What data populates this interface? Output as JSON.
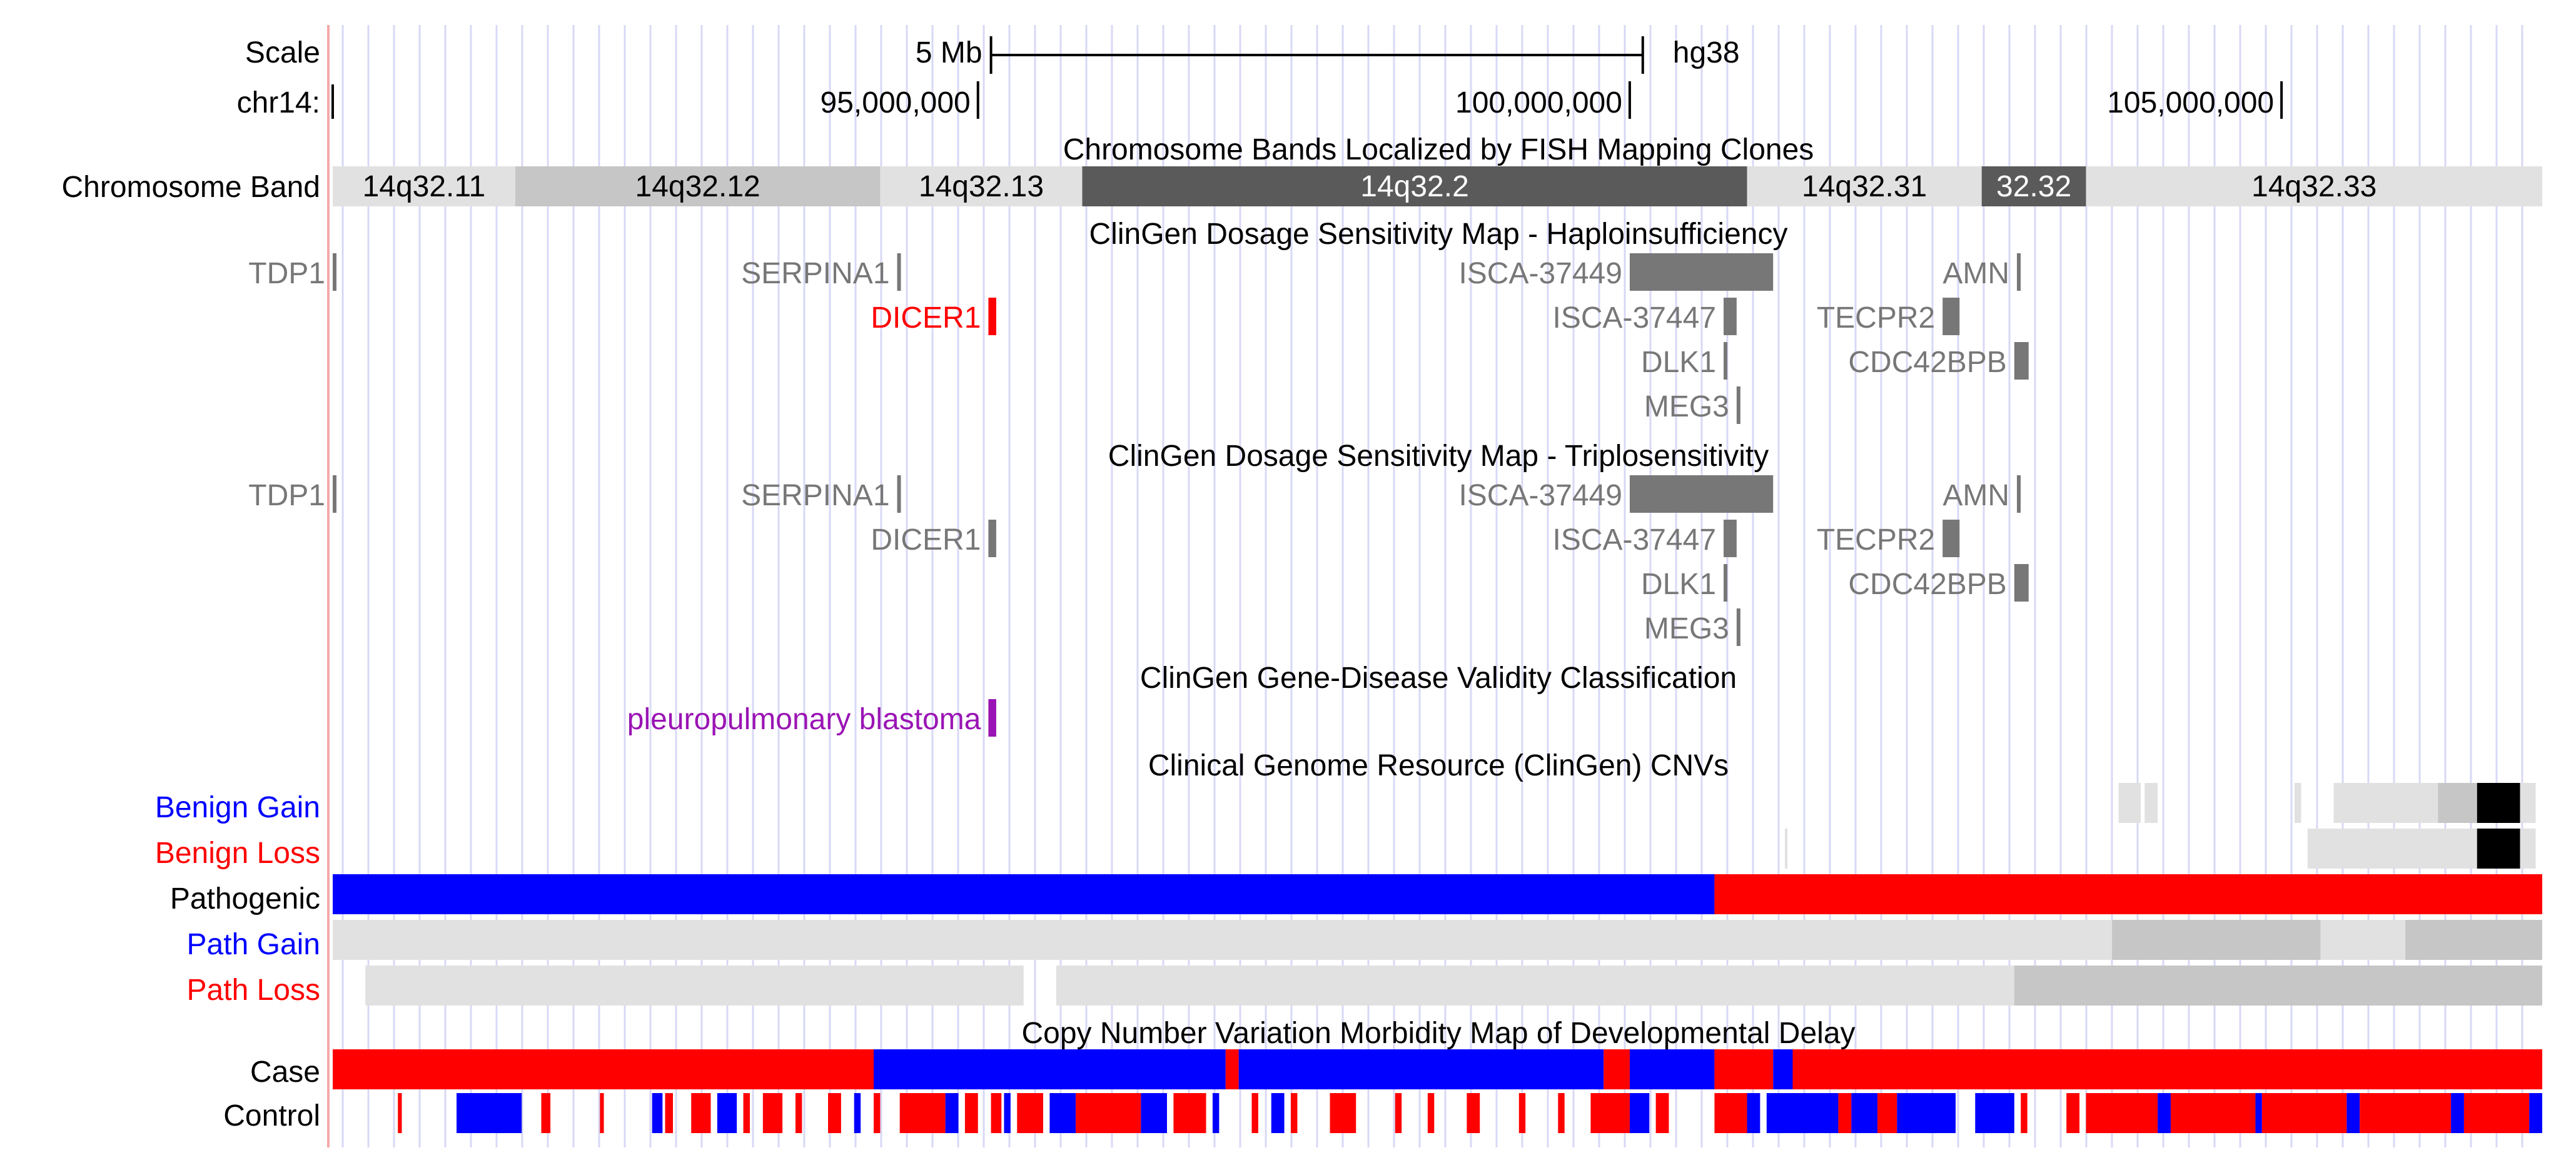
{
  "colors": {
    "grid": "#d8d8f6",
    "redline": "#f4a8a8",
    "gene_gray": "#777777",
    "red": "#ff0000",
    "blue": "#0000ff",
    "purple": "#9a14b4",
    "light": "#e1e1e1",
    "mid": "#c6c6c6",
    "dark": "#5a5a5a",
    "black": "#000000"
  },
  "browser": {
    "assembly": "hg38",
    "chrom_label": "chr14:",
    "scale_label": "Scale",
    "scale_bar_label": "5 Mb",
    "view_start_mb": 90.05,
    "view_end_mb": 107.0,
    "scale_bar_start_mb": 95.1,
    "scale_bar_end_mb": 100.1,
    "ruler_ticks": [
      {
        "label": "95,000,000",
        "pos_mb": 95.0
      },
      {
        "label": "100,000,000",
        "pos_mb": 100.0
      },
      {
        "label": "105,000,000",
        "pos_mb": 105.0
      }
    ]
  },
  "bands": {
    "title": "Chromosome Bands Localized by FISH Mapping Clones",
    "label": "Chromosome Band",
    "items": [
      {
        "name": "14q32.11",
        "start_mb": 90.05,
        "end_mb": 91.45,
        "shade": "light"
      },
      {
        "name": "14q32.12",
        "start_mb": 91.45,
        "end_mb": 94.25,
        "shade": "mid"
      },
      {
        "name": "14q32.13",
        "start_mb": 94.25,
        "end_mb": 95.8,
        "shade": "light"
      },
      {
        "name": "14q32.2",
        "start_mb": 95.8,
        "end_mb": 100.9,
        "shade": "dark"
      },
      {
        "name": "14q32.31",
        "start_mb": 100.9,
        "end_mb": 102.7,
        "shade": "light"
      },
      {
        "name": "32.32",
        "start_mb": 102.7,
        "end_mb": 103.5,
        "shade": "dark"
      },
      {
        "name": "14q32.33",
        "start_mb": 103.5,
        "end_mb": 107.0,
        "shade": "light"
      }
    ]
  },
  "haplo": {
    "title": "ClinGen Dosage Sensitivity Map - Haploinsufficiency",
    "features": [
      {
        "name": "TDP1",
        "start_mb": 90.05,
        "end_mb": 90.07,
        "row": 0,
        "color": "gray"
      },
      {
        "name": "SERPINA1",
        "start_mb": 94.38,
        "end_mb": 94.4,
        "row": 0,
        "color": "gray"
      },
      {
        "name": "ISCA-37449",
        "start_mb": 100.0,
        "end_mb": 101.1,
        "row": 0,
        "color": "gray"
      },
      {
        "name": "AMN",
        "start_mb": 102.97,
        "end_mb": 102.99,
        "row": 0,
        "color": "gray"
      },
      {
        "name": "DICER1",
        "start_mb": 95.08,
        "end_mb": 95.14,
        "row": 1,
        "color": "red"
      },
      {
        "name": "ISCA-37447",
        "start_mb": 100.72,
        "end_mb": 100.82,
        "row": 1,
        "color": "gray"
      },
      {
        "name": "TECPR2",
        "start_mb": 102.4,
        "end_mb": 102.53,
        "row": 1,
        "color": "gray"
      },
      {
        "name": "DLK1",
        "start_mb": 100.72,
        "end_mb": 100.74,
        "row": 2,
        "color": "gray"
      },
      {
        "name": "CDC42BPB",
        "start_mb": 102.95,
        "end_mb": 103.06,
        "row": 2,
        "color": "gray"
      },
      {
        "name": "MEG3",
        "start_mb": 100.82,
        "end_mb": 100.84,
        "row": 3,
        "color": "gray"
      }
    ]
  },
  "triplo": {
    "title": "ClinGen Dosage Sensitivity Map - Triplosensitivity",
    "features": [
      {
        "name": "TDP1",
        "start_mb": 90.05,
        "end_mb": 90.07,
        "row": 0,
        "color": "gray"
      },
      {
        "name": "SERPINA1",
        "start_mb": 94.38,
        "end_mb": 94.4,
        "row": 0,
        "color": "gray"
      },
      {
        "name": "ISCA-37449",
        "start_mb": 100.0,
        "end_mb": 101.1,
        "row": 0,
        "color": "gray"
      },
      {
        "name": "AMN",
        "start_mb": 102.97,
        "end_mb": 102.99,
        "row": 0,
        "color": "gray"
      },
      {
        "name": "DICER1",
        "start_mb": 95.08,
        "end_mb": 95.14,
        "row": 1,
        "color": "gray"
      },
      {
        "name": "ISCA-37447",
        "start_mb": 100.72,
        "end_mb": 100.82,
        "row": 1,
        "color": "gray"
      },
      {
        "name": "TECPR2",
        "start_mb": 102.4,
        "end_mb": 102.53,
        "row": 1,
        "color": "gray"
      },
      {
        "name": "DLK1",
        "start_mb": 100.72,
        "end_mb": 100.74,
        "row": 2,
        "color": "gray"
      },
      {
        "name": "CDC42BPB",
        "start_mb": 102.95,
        "end_mb": 103.06,
        "row": 2,
        "color": "gray"
      },
      {
        "name": "MEG3",
        "start_mb": 100.82,
        "end_mb": 100.84,
        "row": 3,
        "color": "gray"
      }
    ]
  },
  "validity": {
    "title": "ClinGen Gene-Disease Validity Classification",
    "features": [
      {
        "name": "pleuropulmonary blastoma",
        "start_mb": 95.08,
        "end_mb": 95.14,
        "color": "purple"
      }
    ]
  },
  "cnvs": {
    "title": "Clinical Genome Resource (ClinGen) CNVs",
    "tracks": [
      {
        "label": "Benign Gain",
        "label_color": "blue",
        "segments": [
          {
            "start_mb": 103.75,
            "end_mb": 103.92,
            "shade": "light"
          },
          {
            "start_mb": 103.95,
            "end_mb": 104.05,
            "shade": "light"
          },
          {
            "start_mb": 105.1,
            "end_mb": 105.15,
            "shade": "light"
          },
          {
            "start_mb": 105.4,
            "end_mb": 106.2,
            "shade": "light"
          },
          {
            "start_mb": 106.2,
            "end_mb": 106.5,
            "shade": "mid"
          },
          {
            "start_mb": 106.5,
            "end_mb": 106.83,
            "shade": "black"
          },
          {
            "start_mb": 106.83,
            "end_mb": 106.95,
            "shade": "light"
          }
        ]
      },
      {
        "label": "Benign Loss",
        "label_color": "red",
        "segments": [
          {
            "start_mb": 101.19,
            "end_mb": 101.21,
            "shade": "light"
          },
          {
            "start_mb": 105.2,
            "end_mb": 105.35,
            "shade": "light"
          },
          {
            "start_mb": 105.35,
            "end_mb": 106.5,
            "shade": "light"
          },
          {
            "start_mb": 106.5,
            "end_mb": 106.83,
            "shade": "black"
          },
          {
            "start_mb": 106.83,
            "end_mb": 106.95,
            "shade": "light"
          }
        ]
      },
      {
        "label": "Pathogenic",
        "label_color": "black",
        "segments": [
          {
            "start_mb": 90.05,
            "end_mb": 100.65,
            "shade": "blue"
          },
          {
            "start_mb": 100.65,
            "end_mb": 107.0,
            "shade": "red"
          }
        ]
      },
      {
        "label": "Path Gain",
        "label_color": "blue",
        "segments": [
          {
            "start_mb": 90.05,
            "end_mb": 103.7,
            "shade": "light"
          },
          {
            "start_mb": 103.7,
            "end_mb": 105.3,
            "shade": "mid"
          },
          {
            "start_mb": 105.3,
            "end_mb": 105.95,
            "shade": "light"
          },
          {
            "start_mb": 105.95,
            "end_mb": 107.0,
            "shade": "mid"
          }
        ]
      },
      {
        "label": "Path Loss",
        "label_color": "red",
        "segments": [
          {
            "start_mb": 90.3,
            "end_mb": 95.35,
            "shade": "light"
          },
          {
            "start_mb": 95.6,
            "end_mb": 102.95,
            "shade": "light"
          },
          {
            "start_mb": 102.95,
            "end_mb": 107.0,
            "shade": "mid"
          }
        ]
      }
    ]
  },
  "morbidity": {
    "title": "Copy Number Variation Morbidity Map of Developmental Delay",
    "case": {
      "label": "Case",
      "segments": [
        {
          "start_mb": 90.05,
          "end_mb": 94.2,
          "color": "red"
        },
        {
          "start_mb": 94.2,
          "end_mb": 96.9,
          "color": "blue"
        },
        {
          "start_mb": 96.9,
          "end_mb": 97.0,
          "color": "red"
        },
        {
          "start_mb": 97.0,
          "end_mb": 99.8,
          "color": "blue"
        },
        {
          "start_mb": 99.8,
          "end_mb": 100.0,
          "color": "red"
        },
        {
          "start_mb": 100.0,
          "end_mb": 100.65,
          "color": "blue"
        },
        {
          "start_mb": 100.65,
          "end_mb": 101.1,
          "color": "red"
        },
        {
          "start_mb": 101.1,
          "end_mb": 101.25,
          "color": "blue"
        },
        {
          "start_mb": 101.25,
          "end_mb": 107.0,
          "color": "red"
        }
      ]
    },
    "control": {
      "label": "Control",
      "segments": [
        {
          "start_mb": 90.55,
          "end_mb": 90.58,
          "color": "red"
        },
        {
          "start_mb": 91.0,
          "end_mb": 91.5,
          "color": "blue"
        },
        {
          "start_mb": 91.65,
          "end_mb": 91.72,
          "color": "red"
        },
        {
          "start_mb": 92.1,
          "end_mb": 92.13,
          "color": "red"
        },
        {
          "start_mb": 92.5,
          "end_mb": 92.58,
          "color": "blue"
        },
        {
          "start_mb": 92.6,
          "end_mb": 92.66,
          "color": "red"
        },
        {
          "start_mb": 92.8,
          "end_mb": 92.95,
          "color": "red"
        },
        {
          "start_mb": 93.0,
          "end_mb": 93.15,
          "color": "blue"
        },
        {
          "start_mb": 93.2,
          "end_mb": 93.25,
          "color": "red"
        },
        {
          "start_mb": 93.35,
          "end_mb": 93.5,
          "color": "red"
        },
        {
          "start_mb": 93.6,
          "end_mb": 93.65,
          "color": "red"
        },
        {
          "start_mb": 93.85,
          "end_mb": 93.95,
          "color": "red"
        },
        {
          "start_mb": 94.05,
          "end_mb": 94.1,
          "color": "blue"
        },
        {
          "start_mb": 94.2,
          "end_mb": 94.25,
          "color": "red"
        },
        {
          "start_mb": 94.4,
          "end_mb": 94.75,
          "color": "red"
        },
        {
          "start_mb": 94.75,
          "end_mb": 94.85,
          "color": "blue"
        },
        {
          "start_mb": 94.9,
          "end_mb": 95.0,
          "color": "red"
        },
        {
          "start_mb": 95.1,
          "end_mb": 95.18,
          "color": "red"
        },
        {
          "start_mb": 95.2,
          "end_mb": 95.25,
          "color": "blue"
        },
        {
          "start_mb": 95.3,
          "end_mb": 95.5,
          "color": "red"
        },
        {
          "start_mb": 95.55,
          "end_mb": 95.75,
          "color": "blue"
        },
        {
          "start_mb": 95.75,
          "end_mb": 96.25,
          "color": "red"
        },
        {
          "start_mb": 96.25,
          "end_mb": 96.45,
          "color": "blue"
        },
        {
          "start_mb": 96.5,
          "end_mb": 96.75,
          "color": "red"
        },
        {
          "start_mb": 96.8,
          "end_mb": 96.85,
          "color": "blue"
        },
        {
          "start_mb": 97.1,
          "end_mb": 97.15,
          "color": "red"
        },
        {
          "start_mb": 97.25,
          "end_mb": 97.35,
          "color": "blue"
        },
        {
          "start_mb": 97.4,
          "end_mb": 97.45,
          "color": "red"
        },
        {
          "start_mb": 97.7,
          "end_mb": 97.9,
          "color": "red"
        },
        {
          "start_mb": 98.2,
          "end_mb": 98.25,
          "color": "red"
        },
        {
          "start_mb": 98.45,
          "end_mb": 98.5,
          "color": "red"
        },
        {
          "start_mb": 98.75,
          "end_mb": 98.85,
          "color": "red"
        },
        {
          "start_mb": 99.15,
          "end_mb": 99.2,
          "color": "red"
        },
        {
          "start_mb": 99.45,
          "end_mb": 99.5,
          "color": "red"
        },
        {
          "start_mb": 99.7,
          "end_mb": 100.0,
          "color": "red"
        },
        {
          "start_mb": 100.0,
          "end_mb": 100.15,
          "color": "blue"
        },
        {
          "start_mb": 100.2,
          "end_mb": 100.3,
          "color": "red"
        },
        {
          "start_mb": 100.65,
          "end_mb": 100.9,
          "color": "red"
        },
        {
          "start_mb": 100.9,
          "end_mb": 101.0,
          "color": "blue"
        },
        {
          "start_mb": 101.05,
          "end_mb": 101.6,
          "color": "blue"
        },
        {
          "start_mb": 101.6,
          "end_mb": 101.7,
          "color": "red"
        },
        {
          "start_mb": 101.7,
          "end_mb": 101.9,
          "color": "blue"
        },
        {
          "start_mb": 101.9,
          "end_mb": 102.05,
          "color": "red"
        },
        {
          "start_mb": 102.05,
          "end_mb": 102.5,
          "color": "blue"
        },
        {
          "start_mb": 102.65,
          "end_mb": 102.95,
          "color": "blue"
        },
        {
          "start_mb": 103.0,
          "end_mb": 103.05,
          "color": "red"
        },
        {
          "start_mb": 103.35,
          "end_mb": 103.45,
          "color": "red"
        },
        {
          "start_mb": 103.5,
          "end_mb": 104.05,
          "color": "red"
        },
        {
          "start_mb": 104.05,
          "end_mb": 104.15,
          "color": "blue"
        },
        {
          "start_mb": 104.15,
          "end_mb": 104.8,
          "color": "red"
        },
        {
          "start_mb": 104.8,
          "end_mb": 104.85,
          "color": "blue"
        },
        {
          "start_mb": 104.85,
          "end_mb": 105.5,
          "color": "red"
        },
        {
          "start_mb": 105.5,
          "end_mb": 105.6,
          "color": "blue"
        },
        {
          "start_mb": 105.6,
          "end_mb": 106.3,
          "color": "red"
        },
        {
          "start_mb": 106.3,
          "end_mb": 106.4,
          "color": "blue"
        },
        {
          "start_mb": 106.4,
          "end_mb": 106.9,
          "color": "red"
        },
        {
          "start_mb": 106.9,
          "end_mb": 107.0,
          "color": "blue"
        }
      ]
    }
  }
}
